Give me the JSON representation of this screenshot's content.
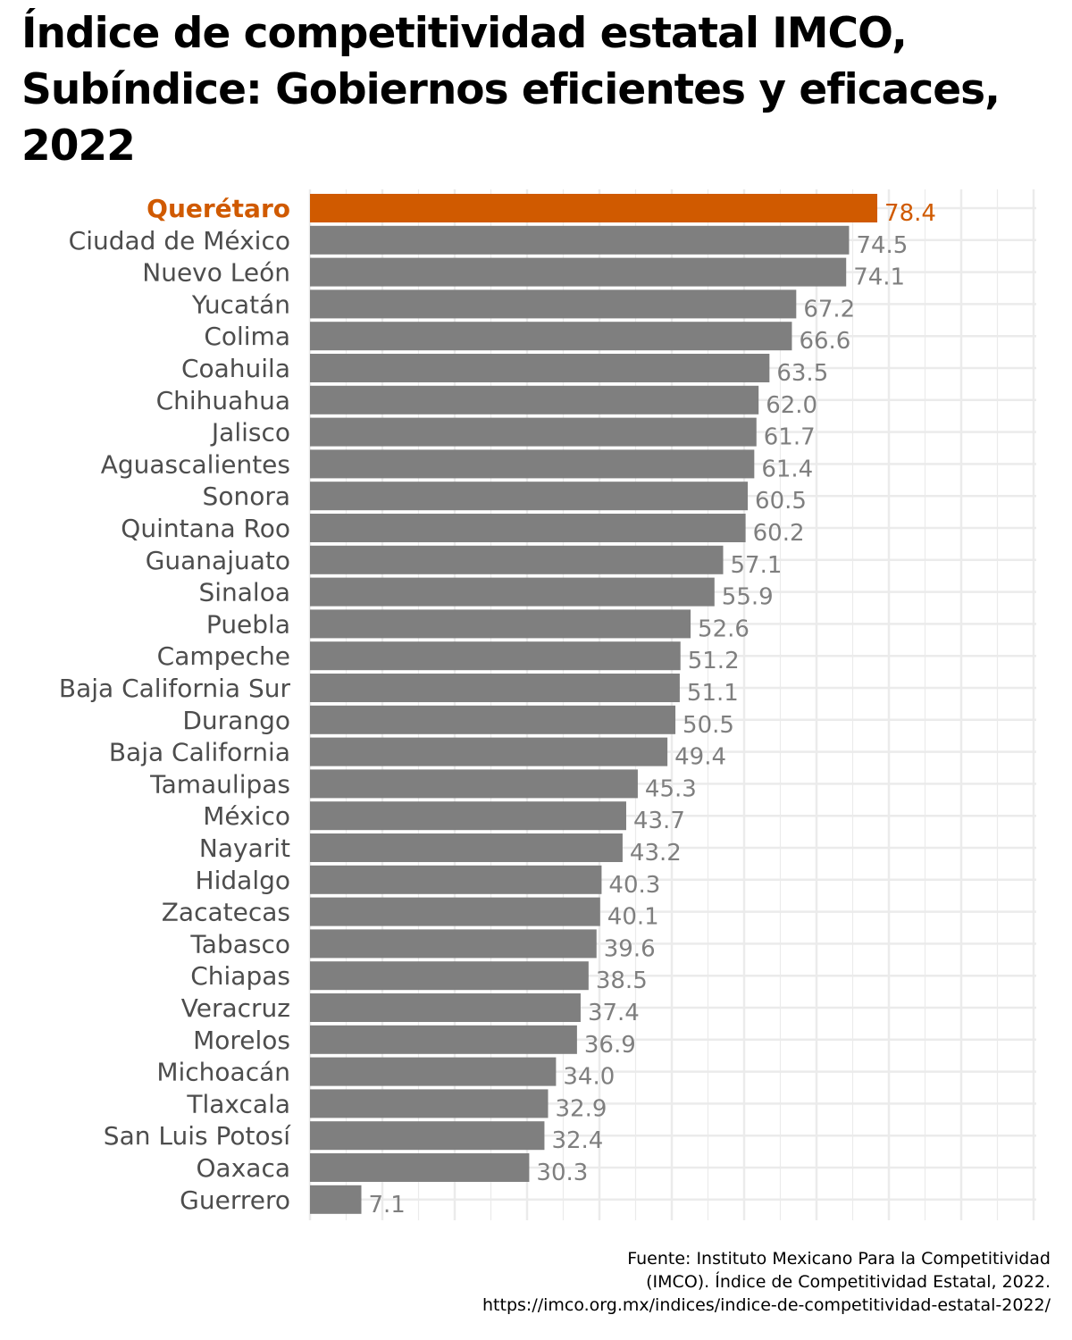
{
  "title": "Índice de competitividad estatal IMCO, Subíndice: Gobiernos eficientes y eficaces, 2022",
  "caption": {
    "line1": "Fuente: Instituto Mexicano Para la Competitividad",
    "line2": "(IMCO). Índice de Competitividad Estatal, 2022.",
    "line3": "https://imco.org.mx/indices/indice-de-competitividad-estatal-2022/"
  },
  "colors": {
    "highlight": "#d05a00",
    "bar": "#7f7f7f",
    "grid": "#ebebeb"
  },
  "chart_data": {
    "type": "bar",
    "orientation": "horizontal",
    "grid": true,
    "highlight": "Querétaro",
    "xlim": [
      0,
      80
    ],
    "categories": [
      "Querétaro",
      "Ciudad de México",
      "Nuevo León",
      "Yucatán",
      "Colima",
      "Coahuila",
      "Chihuahua",
      "Jalisco",
      "Aguascalientes",
      "Sonora",
      "Quintana Roo",
      "Guanajuato",
      "Sinaloa",
      "Puebla",
      "Campeche",
      "Baja California Sur",
      "Durango",
      "Baja California",
      "Tamaulipas",
      "México",
      "Nayarit",
      "Hidalgo",
      "Zacatecas",
      "Tabasco",
      "Chiapas",
      "Veracruz",
      "Morelos",
      "Michoacán",
      "Tlaxcala",
      "San Luis Potosí",
      "Oaxaca",
      "Guerrero"
    ],
    "values": [
      78.4,
      74.5,
      74.1,
      67.2,
      66.6,
      63.5,
      62.0,
      61.7,
      61.4,
      60.5,
      60.2,
      57.1,
      55.9,
      52.6,
      51.2,
      51.1,
      50.5,
      49.4,
      45.3,
      43.7,
      43.2,
      40.3,
      40.1,
      39.6,
      38.5,
      37.4,
      36.9,
      34.0,
      32.9,
      32.4,
      30.3,
      7.1
    ],
    "value_labels": [
      "78.4",
      "74.5",
      "74.1",
      "67.2",
      "66.6",
      "63.5",
      "62.0",
      "61.7",
      "61.4",
      "60.5",
      "60.2",
      "57.1",
      "55.9",
      "52.6",
      "51.2",
      "51.1",
      "50.5",
      "49.4",
      "45.3",
      "43.7",
      "43.2",
      "40.3",
      "40.1",
      "39.6",
      "38.5",
      "37.4",
      "36.9",
      "34.0",
      "32.9",
      "32.4",
      "30.3",
      "7.1"
    ]
  }
}
